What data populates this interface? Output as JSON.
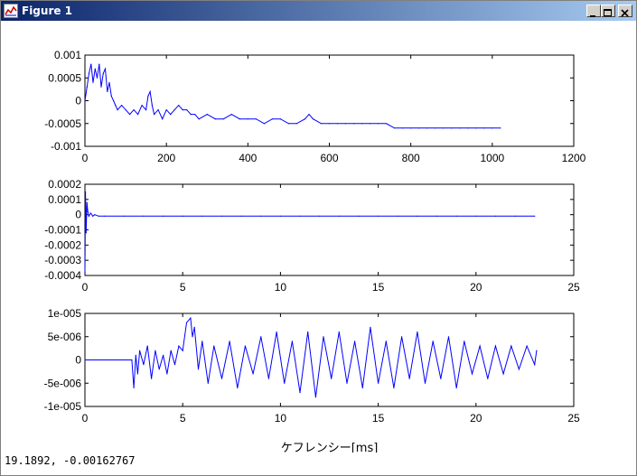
{
  "window": {
    "title": "Figure 1",
    "status": "19.1892, -0.00162767"
  },
  "chart_data": [
    {
      "type": "line",
      "title": "",
      "xlabel": "",
      "ylabel": "",
      "xlim": [
        0,
        1200
      ],
      "ylim": [
        -0.001,
        0.001
      ],
      "xticks": [
        "0",
        "200",
        "400",
        "600",
        "800",
        "1000",
        "1200"
      ],
      "yticks": [
        "0.001",
        "0.0005",
        "0",
        "-0.0005",
        "-0.001"
      ],
      "grid": false,
      "series": [
        {
          "color": "#0000ff",
          "x": [
            0,
            5,
            10,
            15,
            20,
            25,
            30,
            35,
            40,
            45,
            50,
            55,
            60,
            65,
            70,
            75,
            80,
            90,
            100,
            110,
            120,
            130,
            140,
            150,
            155,
            160,
            165,
            170,
            180,
            190,
            200,
            210,
            220,
            230,
            240,
            250,
            260,
            270,
            280,
            300,
            320,
            340,
            360,
            380,
            400,
            420,
            440,
            460,
            480,
            500,
            520,
            540,
            550,
            560,
            580,
            600,
            620,
            640,
            660,
            680,
            700,
            720,
            740,
            760,
            780,
            800,
            820,
            840,
            860,
            880,
            900,
            920,
            940,
            960,
            980,
            1000,
            1020
          ],
          "y": [
            0.0,
            0.0003,
            0.0006,
            0.0008,
            0.0004,
            0.0007,
            0.0005,
            0.0008,
            0.0003,
            0.0006,
            0.0007,
            0.0002,
            0.0004,
            0.0001,
            0.0,
            -0.0001,
            -0.0002,
            -0.0001,
            -0.0002,
            -0.0003,
            -0.0002,
            -0.0003,
            -0.0001,
            -0.0002,
            0.0001,
            0.0002,
            -0.0001,
            -0.0003,
            -0.0002,
            -0.0004,
            -0.0002,
            -0.0003,
            -0.0002,
            -0.0001,
            -0.0002,
            -0.0002,
            -0.0003,
            -0.0003,
            -0.0004,
            -0.0003,
            -0.0004,
            -0.0004,
            -0.0003,
            -0.0004,
            -0.0004,
            -0.0004,
            -0.0005,
            -0.0004,
            -0.0004,
            -0.0005,
            -0.0005,
            -0.0004,
            -0.0003,
            -0.0004,
            -0.0005,
            -0.0005,
            -0.0005,
            -0.0005,
            -0.0005,
            -0.0005,
            -0.0005,
            -0.0005,
            -0.0005,
            -0.0006,
            -0.0006,
            -0.0006,
            -0.0006,
            -0.0006,
            -0.0006,
            -0.0006,
            -0.0006,
            -0.0006,
            -0.0006,
            -0.0006,
            -0.0006,
            -0.0006,
            -0.0006
          ]
        }
      ]
    },
    {
      "type": "line",
      "title": "",
      "xlabel": "",
      "ylabel": "",
      "xlim": [
        0,
        25
      ],
      "ylim": [
        -0.0004,
        0.0002
      ],
      "xticks": [
        "0",
        "5",
        "10",
        "15",
        "20",
        "25"
      ],
      "yticks": [
        "0.0002",
        "0.0001",
        "0",
        "-0.0001",
        "-0.0002",
        "-0.0003",
        "-0.0004"
      ],
      "grid": false,
      "series": [
        {
          "color": "#0000ff",
          "x": [
            0,
            0.03,
            0.06,
            0.1,
            0.15,
            0.2,
            0.3,
            0.4,
            0.5,
            0.7,
            1,
            2,
            3,
            4,
            5,
            6,
            7,
            8,
            9,
            10,
            11,
            12,
            13,
            14,
            15,
            16,
            17,
            18,
            19,
            20,
            21,
            22,
            23
          ],
          "y": [
            -0.00038,
            0.00015,
            -0.00012,
            8e-05,
            2e-05,
            -1e-05,
            1e-05,
            -1e-05,
            0.0,
            -1e-05,
            -1e-05,
            -1e-05,
            -1e-05,
            -1e-05,
            -1e-05,
            -1e-05,
            -1e-05,
            -1e-05,
            -1e-05,
            -1e-05,
            -1e-05,
            -1e-05,
            -1e-05,
            -1e-05,
            -1e-05,
            -1e-05,
            -1e-05,
            -1e-05,
            -1e-05,
            -1e-05,
            -1e-05,
            -1e-05,
            -1e-05
          ]
        }
      ]
    },
    {
      "type": "line",
      "title": "",
      "xlabel": "ケフレンシー[ms]",
      "ylabel": "",
      "xlim": [
        0,
        25
      ],
      "ylim": [
        -1e-05,
        1e-05
      ],
      "xticks": [
        "0",
        "5",
        "10",
        "15",
        "20",
        "25"
      ],
      "yticks": [
        "1e-005",
        "5e-006",
        "0",
        "-5e-006",
        "-1e-005"
      ],
      "grid": false,
      "series": [
        {
          "color": "#0000ff",
          "x": [
            0,
            2.4,
            2.5,
            2.6,
            2.7,
            2.8,
            3.0,
            3.2,
            3.4,
            3.6,
            3.8,
            4.0,
            4.2,
            4.4,
            4.6,
            4.8,
            5.0,
            5.2,
            5.4,
            5.5,
            5.6,
            5.8,
            6.0,
            6.3,
            6.6,
            7.0,
            7.4,
            7.8,
            8.2,
            8.6,
            9.0,
            9.4,
            9.8,
            10.2,
            10.6,
            11.0,
            11.4,
            11.8,
            12.2,
            12.6,
            13.0,
            13.4,
            13.8,
            14.2,
            14.6,
            15.0,
            15.4,
            15.8,
            16.2,
            16.6,
            17.0,
            17.4,
            17.8,
            18.2,
            18.6,
            19.0,
            19.4,
            19.8,
            20.2,
            20.6,
            21.0,
            21.4,
            21.8,
            22.2,
            22.6,
            23.0,
            23.1
          ],
          "y": [
            0.0,
            0.0,
            -6e-06,
            1e-06,
            -3e-06,
            2e-06,
            -1e-06,
            3e-06,
            -4e-06,
            2e-06,
            -2e-06,
            1e-06,
            -3e-06,
            2e-06,
            -1e-06,
            3e-06,
            2e-06,
            8e-06,
            9e-06,
            5e-06,
            7e-06,
            -2e-06,
            4e-06,
            -5e-06,
            3e-06,
            -4e-06,
            4e-06,
            -6e-06,
            3e-06,
            -3e-06,
            5e-06,
            -4e-06,
            6e-06,
            -5e-06,
            4e-06,
            -7e-06,
            6e-06,
            -8e-06,
            5e-06,
            -4e-06,
            6e-06,
            -5e-06,
            4e-06,
            -6e-06,
            7e-06,
            -5e-06,
            4e-06,
            -6e-06,
            5e-06,
            -4e-06,
            6e-06,
            -5e-06,
            4e-06,
            -4e-06,
            5e-06,
            -6e-06,
            4e-06,
            -3e-06,
            3e-06,
            -4e-06,
            3e-06,
            -3e-06,
            3e-06,
            -2e-06,
            3e-06,
            -1e-06,
            2e-06
          ]
        }
      ]
    }
  ]
}
